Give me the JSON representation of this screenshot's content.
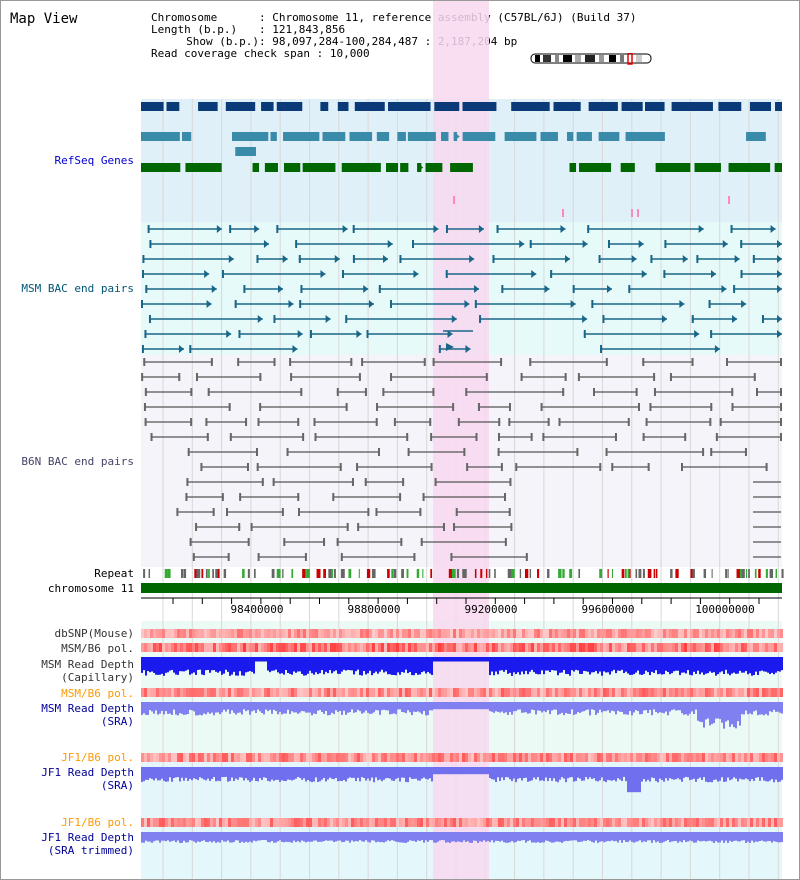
{
  "title": "Map View",
  "info": {
    "chromosome_label": "Chromosome",
    "chromosome_value": "Chromosome 11, reference assembly (C57BL/6J) (Build 37)",
    "length_label": "Length (b.p.)",
    "length_value": "121,843,856",
    "show_label": "Show (b.p.)",
    "show_value": "98,097,284-100,284,487 : 2,187,204 bp",
    "read_label": "Read coverage check span",
    "read_value": "10,000"
  },
  "tracks": {
    "refseq": "RefSeq Genes",
    "msm_bac": "MSM BAC end pairs",
    "b6n_bac": "B6N BAC end pairs",
    "repeat": "Repeat",
    "chromosome": "chromosome 11",
    "dbsnp": "dbSNP(Mouse)",
    "msm_b6_pol_1": "MSM/B6 pol.",
    "msm_read_depth_cap": "MSM Read Depth\n(Capillary)",
    "msm_b6_pol_2": "MSM/B6 pol.",
    "msm_read_depth_sra": "MSM Read Depth\n(SRA)",
    "jf1_b6_pol_1": "JF1/B6 pol.",
    "jf1_read_depth_sra": "JF1 Read Depth\n(SRA)",
    "jf1_b6_pol_2": "JF1/B6 pol.",
    "jf1_read_depth_trim": "JF1 Read Depth\n(SRA trimmed)"
  },
  "axis": {
    "ticks": [
      "98400000",
      "98800000",
      "99200000",
      "99600000",
      "100000000"
    ]
  },
  "colors": {
    "highlight": "#f8d8f0",
    "refseq_label": "#0000cc",
    "msm_label": "#005577",
    "b6n_label": "#444466",
    "orange_label": "#ff9900",
    "blue_label": "#000099",
    "chromosome_bar": "#006600"
  }
}
